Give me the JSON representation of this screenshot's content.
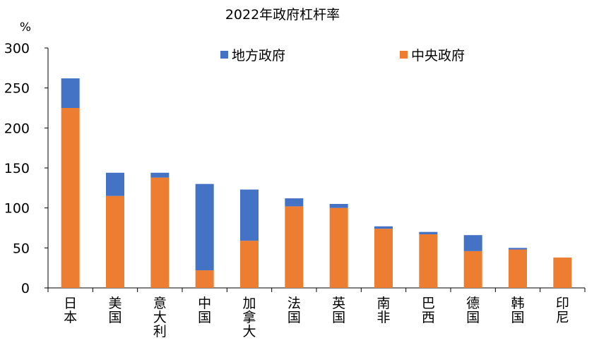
{
  "chart_data": {
    "type": "bar",
    "stacked": true,
    "title": "2022年政府杠杆率",
    "unit": "%",
    "categories": [
      "日本",
      "美国",
      "意大利",
      "中国",
      "加拿大",
      "法国",
      "英国",
      "南非",
      "巴西",
      "德国",
      "韩国",
      "印尼"
    ],
    "series": [
      {
        "name": "中央政府",
        "color": "#ED7D31",
        "values": [
          225,
          115,
          138,
          22,
          59,
          102,
          100,
          74,
          67,
          46,
          48,
          38
        ]
      },
      {
        "name": "地方政府",
        "color": "#4472C4",
        "values": [
          37,
          29,
          6,
          108,
          64,
          10,
          5,
          3,
          3,
          20,
          2,
          0
        ]
      }
    ],
    "ylim": [
      0,
      300
    ],
    "yticks": [
      0,
      50,
      100,
      150,
      200,
      250,
      300
    ],
    "xlabel": "",
    "ylabel": "",
    "grid": false,
    "legend": [
      {
        "name": "地方政府",
        "color": "#4472C4"
      },
      {
        "name": "中央政府",
        "color": "#ED7D31"
      }
    ]
  }
}
